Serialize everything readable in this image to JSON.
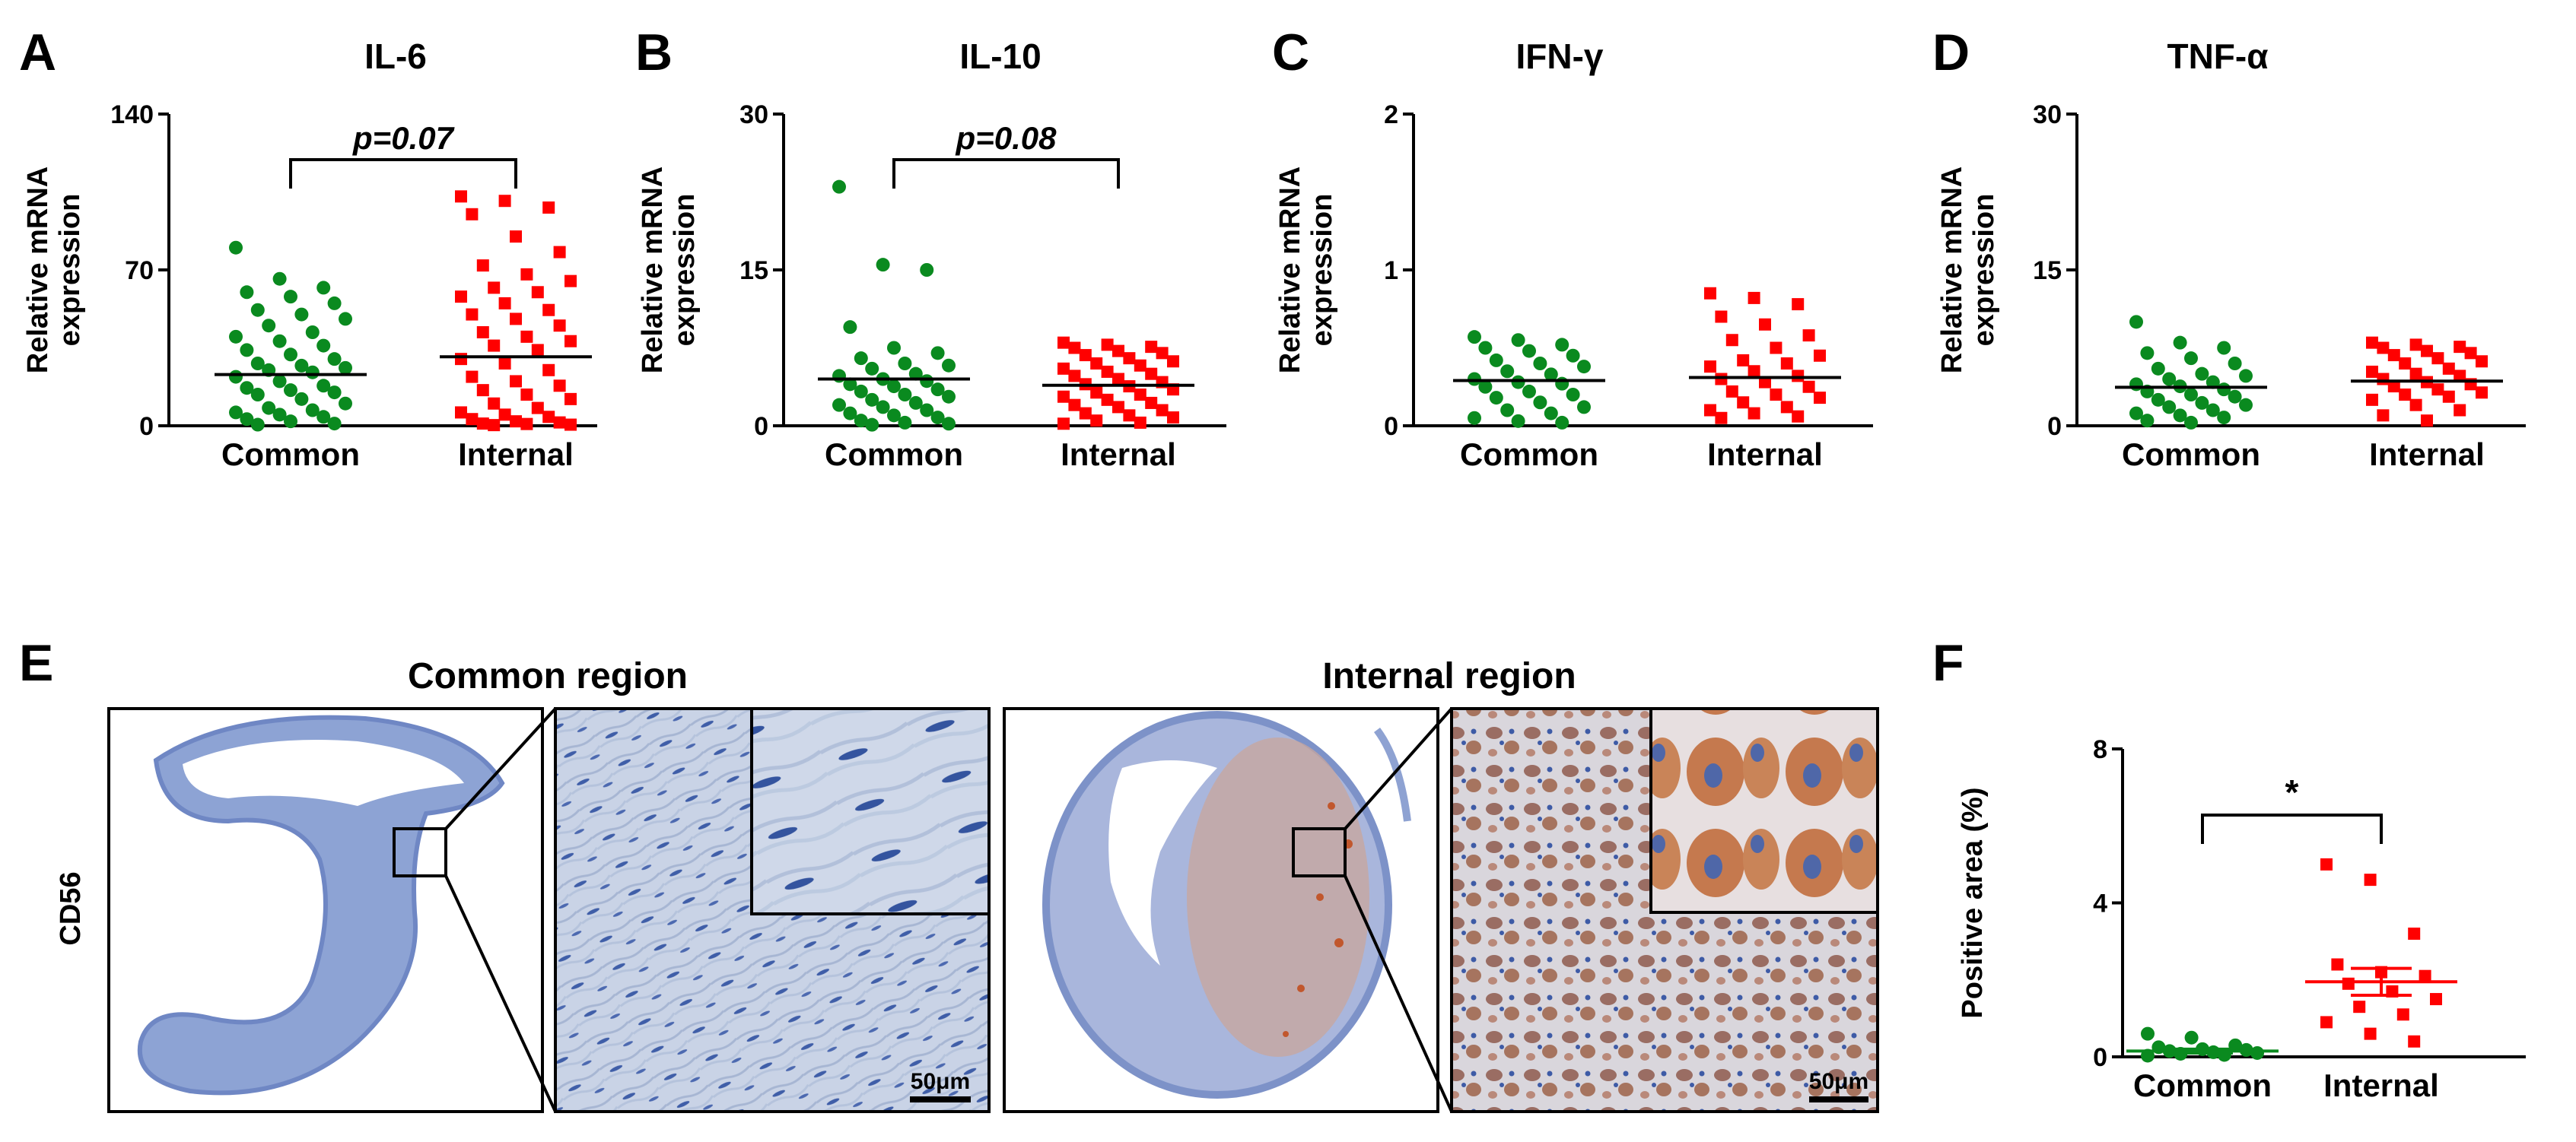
{
  "panels": {
    "A": "A",
    "B": "B",
    "C": "C",
    "D": "D",
    "E": "E",
    "F": "F"
  },
  "colors": {
    "common": "#0a8a1f",
    "internal": "#ff0000",
    "axis": "#000000",
    "tissue_blue": "#7f97cf",
    "stain_brown": "#b4663c"
  },
  "chart_data": [
    {
      "type": "scatter",
      "panel": "A",
      "title": "IL-6",
      "ylabel_lines": [
        "Relative mRNA",
        "expression"
      ],
      "categories": [
        "Common",
        "Internal"
      ],
      "yticks": [
        0,
        70,
        140
      ],
      "ylim": [
        0,
        140
      ],
      "comparison": "p=0.07",
      "means": [
        23,
        31
      ],
      "series": [
        {
          "values": [
            80,
            66,
            62,
            60,
            58,
            55,
            52,
            50,
            48,
            45,
            42,
            40,
            38,
            36,
            34,
            32,
            30,
            28,
            27,
            26,
            25,
            24,
            22,
            20,
            18,
            17,
            16,
            15,
            14,
            12,
            10,
            8,
            7,
            6,
            5,
            4,
            3,
            2,
            1,
            0.5
          ]
        },
        {
          "values": [
            103,
            101,
            98,
            95,
            85,
            78,
            72,
            68,
            65,
            62,
            60,
            58,
            55,
            52,
            50,
            48,
            45,
            42,
            40,
            38,
            36,
            34,
            30,
            28,
            25,
            22,
            20,
            18,
            16,
            14,
            12,
            10,
            8,
            6,
            5,
            4,
            3,
            2,
            1.5,
            1,
            0.8,
            0.5,
            0.3
          ]
        }
      ]
    },
    {
      "type": "scatter",
      "panel": "B",
      "title": "IL-10",
      "ylabel_lines": [
        "Relative mRNA",
        "expression"
      ],
      "categories": [
        "Common",
        "Internal"
      ],
      "yticks": [
        0,
        15,
        30
      ],
      "ylim": [
        0,
        30
      ],
      "comparison": "p=0.08",
      "means": [
        4.5,
        3.9
      ],
      "series": [
        {
          "values": [
            23,
            15.5,
            15,
            9.5,
            7.5,
            7,
            6.5,
            6,
            5.8,
            5.5,
            5,
            4.8,
            4.5,
            4.3,
            4,
            3.8,
            3.5,
            3.3,
            3,
            2.8,
            2.5,
            2.2,
            2,
            1.8,
            1.5,
            1.2,
            1,
            0.8,
            0.5,
            0.3,
            0.2,
            0.1
          ]
        },
        {
          "values": [
            8,
            7.8,
            7.6,
            7.5,
            7.2,
            7,
            6.8,
            6.5,
            6.2,
            6,
            5.8,
            5.5,
            5.2,
            5,
            4.8,
            4.5,
            4.2,
            4,
            3.8,
            3.5,
            3.2,
            3,
            2.8,
            2.5,
            2.2,
            2,
            1.8,
            1.5,
            1.2,
            1,
            0.8,
            0.5,
            0.3,
            0.2
          ]
        }
      ]
    },
    {
      "type": "scatter",
      "panel": "C",
      "title": "IFN-γ",
      "ylabel_lines": [
        "Relative mRNA",
        "expression"
      ],
      "categories": [
        "Common",
        "Internal"
      ],
      "yticks": [
        0,
        1,
        2
      ],
      "ylim": [
        0,
        2
      ],
      "means": [
        0.29,
        0.31
      ],
      "series": [
        {
          "values": [
            0.57,
            0.55,
            0.52,
            0.5,
            0.48,
            0.45,
            0.42,
            0.4,
            0.38,
            0.35,
            0.33,
            0.3,
            0.28,
            0.27,
            0.25,
            0.22,
            0.2,
            0.18,
            0.15,
            0.12,
            0.1,
            0.08,
            0.05,
            0.03,
            0.02
          ]
        },
        {
          "values": [
            0.85,
            0.82,
            0.78,
            0.7,
            0.65,
            0.58,
            0.55,
            0.5,
            0.45,
            0.42,
            0.4,
            0.38,
            0.35,
            0.32,
            0.3,
            0.28,
            0.25,
            0.22,
            0.2,
            0.18,
            0.15,
            0.12,
            0.1,
            0.08,
            0.06,
            0.05
          ]
        }
      ]
    },
    {
      "type": "scatter",
      "panel": "D",
      "title": "TNF-α",
      "ylabel_lines": [
        "Relative mRNA",
        "expression"
      ],
      "categories": [
        "Common",
        "Internal"
      ],
      "yticks": [
        0,
        15,
        30
      ],
      "ylim": [
        0,
        30
      ],
      "means": [
        3.7,
        4.3
      ],
      "series": [
        {
          "values": [
            10,
            8,
            7.5,
            7,
            6.5,
            6,
            5.5,
            5,
            4.8,
            4.5,
            4.2,
            4,
            3.8,
            3.5,
            3.3,
            3,
            2.8,
            2.5,
            2.2,
            2,
            1.8,
            1.5,
            1.2,
            1,
            0.8,
            0.5,
            0.3
          ]
        },
        {
          "values": [
            8,
            7.8,
            7.6,
            7.5,
            7.2,
            7,
            6.8,
            6.5,
            6.2,
            6,
            5.5,
            5.2,
            5,
            4.8,
            4.5,
            4.2,
            4,
            3.8,
            3.5,
            3.2,
            3,
            2.8,
            2.5,
            2,
            1.5,
            1,
            0.5
          ]
        }
      ]
    },
    {
      "type": "scatter",
      "panel": "F",
      "ylabel": "Positive area (%)",
      "categories": [
        "Common",
        "Internal"
      ],
      "yticks": [
        0,
        4,
        8
      ],
      "ylim": [
        0,
        8
      ],
      "comparison": "*",
      "means": [
        0.15,
        1.95
      ],
      "sem": [
        0.05,
        0.35
      ],
      "series": [
        {
          "values": [
            0.6,
            0.5,
            0.3,
            0.25,
            0.2,
            0.18,
            0.15,
            0.12,
            0.1,
            0.08,
            0.05,
            0.03
          ]
        },
        {
          "values": [
            5,
            4.6,
            3.2,
            2.4,
            2.2,
            2.1,
            1.9,
            1.7,
            1.5,
            1.3,
            1.1,
            0.9,
            0.6,
            0.4
          ]
        }
      ]
    }
  ],
  "histology": {
    "row_label": "CD56",
    "common_label": "Common region",
    "internal_label": "Internal region",
    "scale_bar": "50μm"
  }
}
